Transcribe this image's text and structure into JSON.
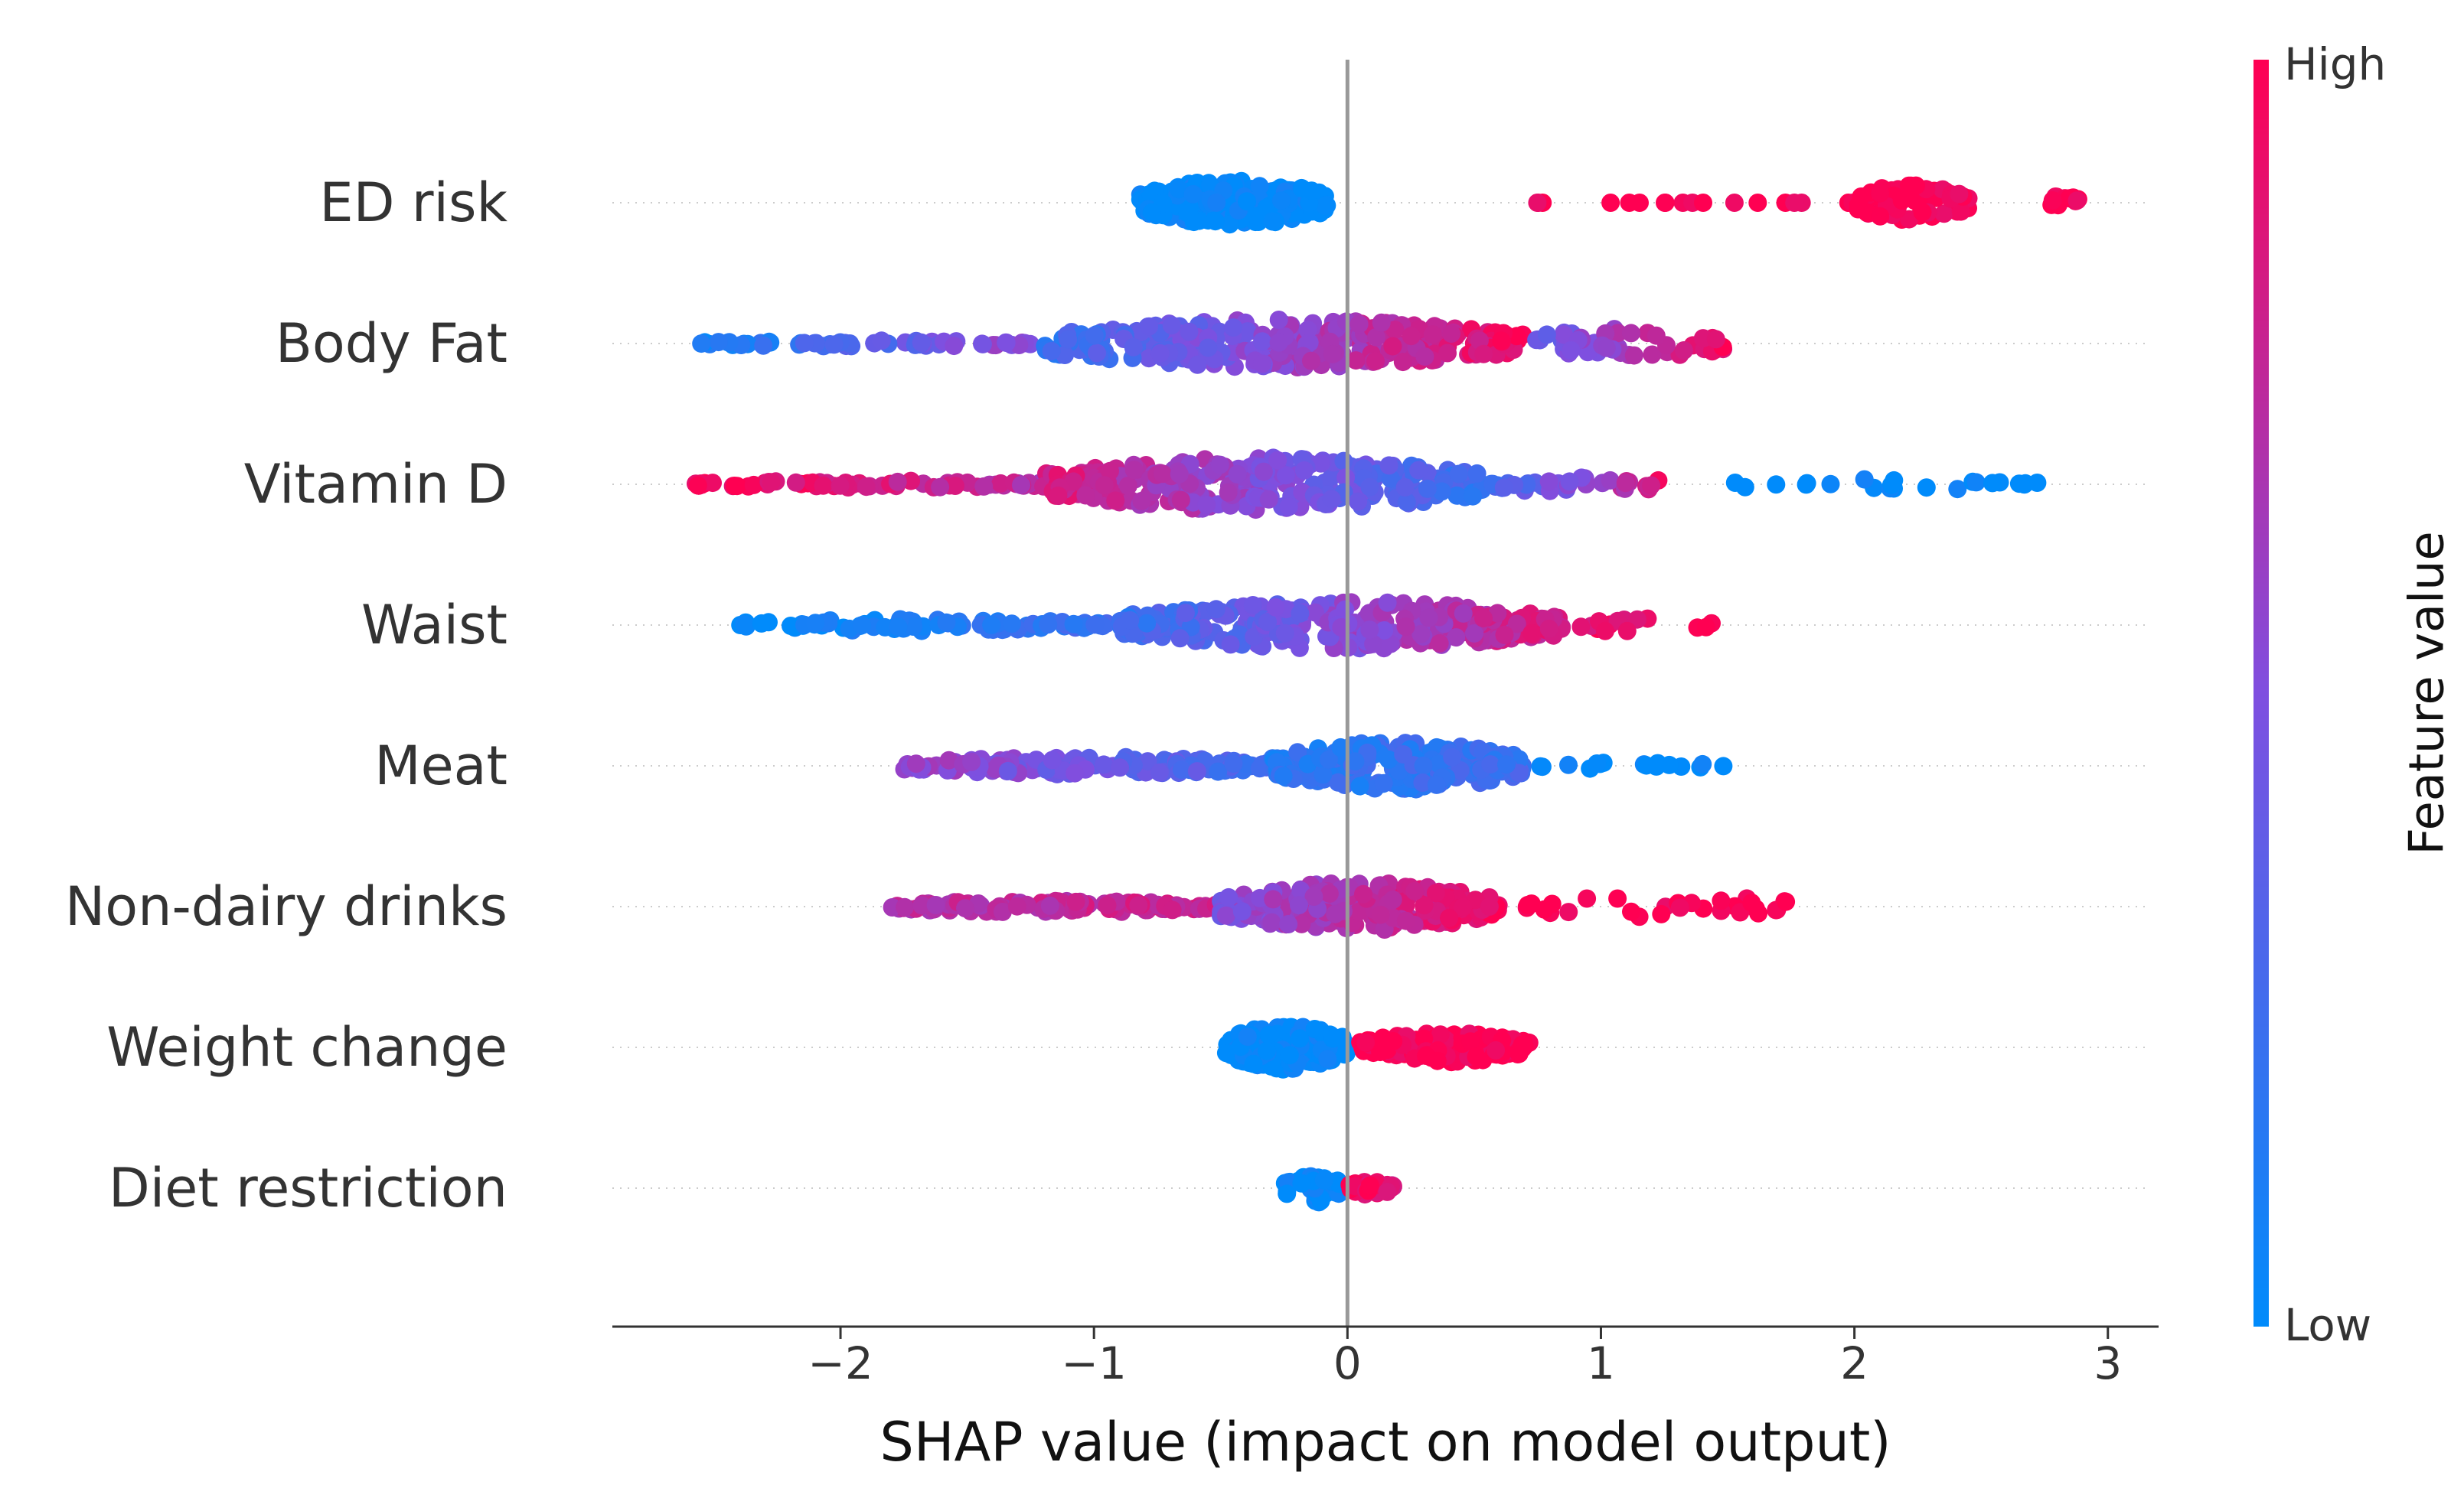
{
  "chart_data": {
    "type": "scatter",
    "subtype": "shap_beeswarm",
    "xlabel": "SHAP value (impact on model output)",
    "ylabel": "",
    "xlim": [
      -2.9,
      3.2
    ],
    "xticks": [
      {
        "value": -2,
        "label": "−2"
      },
      {
        "value": -1,
        "label": "−1"
      },
      {
        "value": 0,
        "label": "0"
      },
      {
        "value": 1,
        "label": "1"
      },
      {
        "value": 2,
        "label": "2"
      },
      {
        "value": 3,
        "label": "3"
      }
    ],
    "features": [
      {
        "name": "ED risk",
        "segments": [
          {
            "from": -0.82,
            "to": -0.08,
            "color_from": 0.0,
            "color_to": 0.0,
            "n": 230,
            "spread": 0.38
          },
          {
            "from": 0.65,
            "to": 2.0,
            "color_from": 1.0,
            "color_to": 1.0,
            "n": 18,
            "spread": 0.0
          },
          {
            "from": 2.0,
            "to": 2.45,
            "color_from": 1.0,
            "color_to": 1.0,
            "n": 70,
            "spread": 0.3
          },
          {
            "from": 2.75,
            "to": 2.9,
            "color_from": 1.0,
            "color_to": 1.0,
            "n": 12,
            "spread": 0.12
          }
        ]
      },
      {
        "name": "Body Fat",
        "segments": [
          {
            "from": -2.55,
            "to": -1.2,
            "color_from": 0.05,
            "color_to": 0.6,
            "n": 55,
            "spread": 0.05
          },
          {
            "from": -1.2,
            "to": 0.7,
            "color_from": 0.2,
            "color_to": 0.95,
            "n": 330,
            "spread": 0.4
          },
          {
            "from": 0.7,
            "to": 1.5,
            "color_from": 0.35,
            "color_to": 0.95,
            "n": 50,
            "spread": 0.25
          }
        ]
      },
      {
        "name": "Vitamin D",
        "segments": [
          {
            "from": -2.6,
            "to": -1.2,
            "color_from": 1.0,
            "color_to": 0.7,
            "n": 65,
            "spread": 0.06
          },
          {
            "from": -1.2,
            "to": 0.55,
            "color_from": 0.85,
            "color_to": 0.2,
            "n": 320,
            "spread": 0.45
          },
          {
            "from": 0.55,
            "to": 1.25,
            "color_from": 0.2,
            "color_to": 0.9,
            "n": 35,
            "spread": 0.15
          },
          {
            "from": 1.5,
            "to": 2.75,
            "color_from": 0.0,
            "color_to": 0.0,
            "n": 22,
            "spread": 0.1
          }
        ]
      },
      {
        "name": "Waist",
        "segments": [
          {
            "from": -2.4,
            "to": -0.9,
            "color_from": 0.0,
            "color_to": 0.25,
            "n": 90,
            "spread": 0.1
          },
          {
            "from": -0.9,
            "to": 0.85,
            "color_from": 0.2,
            "color_to": 0.85,
            "n": 330,
            "spread": 0.4
          },
          {
            "from": 0.85,
            "to": 1.45,
            "color_from": 0.9,
            "color_to": 1.0,
            "n": 14,
            "spread": 0.12
          }
        ]
      },
      {
        "name": "Meat",
        "segments": [
          {
            "from": -1.75,
            "to": -0.3,
            "color_from": 0.6,
            "color_to": 0.25,
            "n": 140,
            "spread": 0.15
          },
          {
            "from": -0.3,
            "to": 0.7,
            "color_from": 0.15,
            "color_to": 0.25,
            "n": 230,
            "spread": 0.4
          },
          {
            "from": 0.75,
            "to": 1.5,
            "color_from": 0.0,
            "color_to": 0.0,
            "n": 16,
            "spread": 0.06
          }
        ]
      },
      {
        "name": "Non-dairy drinks",
        "segments": [
          {
            "from": -1.8,
            "to": -0.5,
            "color_from": 0.7,
            "color_to": 0.8,
            "n": 120,
            "spread": 0.1
          },
          {
            "from": -0.5,
            "to": 0.6,
            "color_from": 0.5,
            "color_to": 0.95,
            "n": 240,
            "spread": 0.4
          },
          {
            "from": 0.7,
            "to": 1.75,
            "color_from": 1.0,
            "color_to": 1.0,
            "n": 30,
            "spread": 0.2
          }
        ]
      },
      {
        "name": "Weight change",
        "segments": [
          {
            "from": -0.48,
            "to": 0.0,
            "color_from": 0.0,
            "color_to": 0.0,
            "n": 180,
            "spread": 0.38
          },
          {
            "from": 0.05,
            "to": 0.72,
            "color_from": 1.0,
            "color_to": 1.0,
            "n": 150,
            "spread": 0.25
          }
        ]
      },
      {
        "name": "Diet restriction",
        "segments": [
          {
            "from": -0.25,
            "to": 0.0,
            "color_from": 0.0,
            "color_to": 0.0,
            "n": 45,
            "spread": 0.25
          },
          {
            "from": 0.0,
            "to": 0.18,
            "color_from": 1.0,
            "color_to": 0.85,
            "n": 40,
            "spread": 0.12
          }
        ]
      }
    ],
    "colorbar": {
      "label": "Feature value",
      "high_label": "High",
      "low_label": "Low",
      "low_color": "#008bfb",
      "mid_color": "#7f4fe0",
      "high_color": "#ff0052"
    },
    "zero_line_color": "#999999",
    "grid_color": "#cccccc"
  }
}
